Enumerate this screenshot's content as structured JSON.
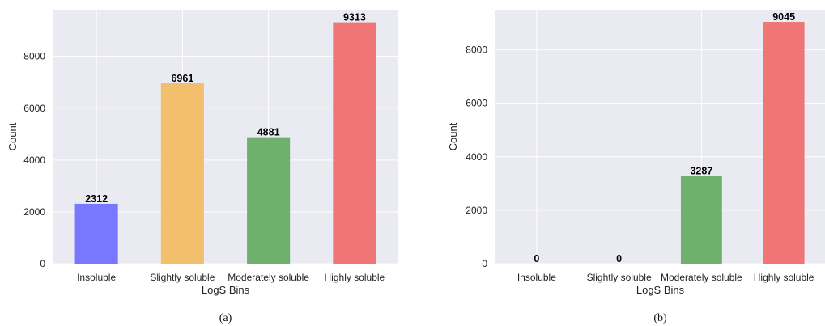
{
  "chart_data": [
    {
      "type": "bar",
      "caption": "(a)",
      "categories": [
        "Insoluble",
        "Slightly soluble",
        "Moderately soluble",
        "Highly soluble"
      ],
      "values": [
        2312,
        6961,
        4881,
        9313
      ],
      "xlabel": "LogS Bins",
      "ylabel": "Count",
      "ylim": [
        0,
        9800
      ],
      "yticks": [
        0,
        2000,
        4000,
        6000,
        8000
      ],
      "grid": true,
      "colors": [
        "#7878ff",
        "#f2c06d",
        "#6fb06f",
        "#f07575"
      ]
    },
    {
      "type": "bar",
      "caption": "(b)",
      "categories": [
        "Insoluble",
        "Slightly soluble",
        "Moderately soluble",
        "Highly soluble"
      ],
      "values": [
        0,
        0,
        3287,
        9045
      ],
      "xlabel": "LogS Bins",
      "ylabel": "Count",
      "ylim": [
        0,
        9500
      ],
      "yticks": [
        0,
        2000,
        4000,
        6000,
        8000
      ],
      "grid": true,
      "colors": [
        "#7878ff",
        "#f2c06d",
        "#6fb06f",
        "#f07575"
      ]
    }
  ]
}
